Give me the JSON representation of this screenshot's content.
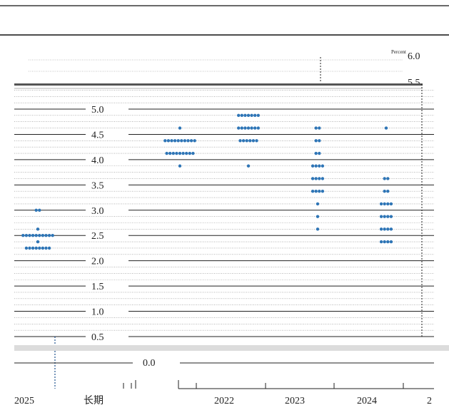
{
  "chart_data": {
    "type": "scatter",
    "title": "",
    "ylabel": "Percent",
    "ylim": [
      0,
      6
    ],
    "y_ticks": [
      "6.0",
      "5.5",
      "5.0",
      "4.5",
      "4.0",
      "3.5",
      "3.0",
      "2.5",
      "2.0",
      "1.5",
      "1.0",
      "0.5",
      "0.0"
    ],
    "x_labels": [
      "2025",
      "长期",
      "2022",
      "2023",
      "2024",
      "2"
    ],
    "series": [
      {
        "category": "2025",
        "points": [
          {
            "y": 3.0,
            "count": 2
          },
          {
            "y": 2.625,
            "count": 1
          },
          {
            "y": 2.5,
            "count": 10
          },
          {
            "y": 2.375,
            "count": 1
          },
          {
            "y": 2.25,
            "count": 8
          }
        ]
      },
      {
        "category": "2022",
        "points": [
          {
            "y": 4.625,
            "count": 1
          },
          {
            "y": 4.375,
            "count": 10
          },
          {
            "y": 4.125,
            "count": 9
          },
          {
            "y": 3.875,
            "count": 1
          }
        ]
      },
      {
        "category": "2023",
        "points": [
          {
            "y": 4.875,
            "count": 7
          },
          {
            "y": 4.625,
            "count": 7
          },
          {
            "y": 4.375,
            "count": 6
          },
          {
            "y": 3.875,
            "count": 1
          }
        ]
      },
      {
        "category": "2024",
        "points": [
          {
            "y": 4.625,
            "count": 2
          },
          {
            "y": 4.375,
            "count": 2
          },
          {
            "y": 4.125,
            "count": 2
          },
          {
            "y": 3.875,
            "count": 4
          },
          {
            "y": 3.625,
            "count": 4
          },
          {
            "y": 3.375,
            "count": 4
          },
          {
            "y": 3.125,
            "count": 1
          },
          {
            "y": 2.875,
            "count": 1
          },
          {
            "y": 2.625,
            "count": 1
          }
        ]
      },
      {
        "category": "2",
        "points": [
          {
            "y": 4.625,
            "count": 1
          },
          {
            "y": 3.625,
            "count": 2
          },
          {
            "y": 3.375,
            "count": 2
          },
          {
            "y": 3.125,
            "count": 4
          },
          {
            "y": 2.875,
            "count": 4
          },
          {
            "y": 2.625,
            "count": 4
          },
          {
            "y": 2.375,
            "count": 4
          }
        ]
      }
    ],
    "dot_color": "#2e75b6",
    "grid": true
  }
}
